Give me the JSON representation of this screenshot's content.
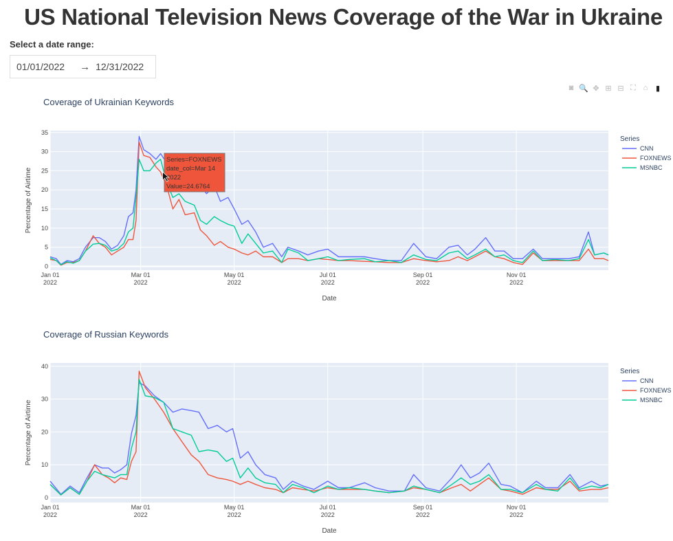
{
  "page": {
    "title": "US National Television News Coverage of the War in Ukraine"
  },
  "date_range": {
    "label": "Select a date range:",
    "start": "01/01/2022",
    "arrow": "→",
    "end": "12/31/2022"
  },
  "toolbar": [
    {
      "icon": "camera-icon",
      "glyph": "◙"
    },
    {
      "icon": "zoom-icon",
      "glyph": "🔍"
    },
    {
      "icon": "pan-icon",
      "glyph": "✥"
    },
    {
      "icon": "zoom-in-icon",
      "glyph": "⊞"
    },
    {
      "icon": "zoom-out-icon",
      "glyph": "⊟"
    },
    {
      "icon": "autoscale-icon",
      "glyph": "⛶"
    },
    {
      "icon": "home-icon",
      "glyph": "⌂"
    },
    {
      "icon": "plotly-logo-icon",
      "glyph": "▮"
    }
  ],
  "colors": {
    "CNN": "#636efa",
    "FOXNEWS": "#EF553B",
    "MSNBC": "#00cc96",
    "plot_bg": "#e5ecf6",
    "text": "#2a3f5f"
  },
  "chart_data": [
    {
      "type": "line",
      "title": "Coverage of Ukrainian Keywords",
      "xlabel": "Date",
      "ylabel": "Percentage of Airtime",
      "ylim": [
        -1,
        35.5
      ],
      "yticks": [
        0,
        5,
        10,
        15,
        20,
        25,
        30,
        35
      ],
      "xticks": [
        {
          "date": "2022-01-01",
          "label": "Jan 01",
          "year": "2022"
        },
        {
          "date": "2022-03-01",
          "label": "Mar 01",
          "year": "2022"
        },
        {
          "date": "2022-05-01",
          "label": "May 01",
          "year": "2022"
        },
        {
          "date": "2022-07-01",
          "label": "Jul 01",
          "year": "2022"
        },
        {
          "date": "2022-09-01",
          "label": "Sep 01",
          "year": "2022"
        },
        {
          "date": "2022-11-01",
          "label": "Nov 01",
          "year": "2022"
        }
      ],
      "xlim": [
        "2022-01-01",
        "2022-12-31"
      ],
      "grid": true,
      "legend": {
        "title": "Series",
        "placement": "right"
      },
      "hover": {
        "lines": [
          "Series=FOXNEWS",
          "date_col=Mar 14",
          "2022",
          "Value=24.6764"
        ],
        "series": "FOXNEWS",
        "date": "2022-03-14",
        "value": 24.6764
      },
      "x": [
        "2022-01-01",
        "2022-01-05",
        "2022-01-08",
        "2022-01-12",
        "2022-01-16",
        "2022-01-20",
        "2022-01-24",
        "2022-01-29",
        "2022-02-02",
        "2022-02-06",
        "2022-02-10",
        "2022-02-14",
        "2022-02-18",
        "2022-02-21",
        "2022-02-24",
        "2022-02-26",
        "2022-02-28",
        "2022-03-03",
        "2022-03-07",
        "2022-03-11",
        "2022-03-14",
        "2022-03-18",
        "2022-03-22",
        "2022-03-26",
        "2022-03-30",
        "2022-04-05",
        "2022-04-09",
        "2022-04-13",
        "2022-04-18",
        "2022-04-22",
        "2022-04-27",
        "2022-05-01",
        "2022-05-06",
        "2022-05-10",
        "2022-05-15",
        "2022-05-20",
        "2022-05-26",
        "2022-06-01",
        "2022-06-05",
        "2022-06-12",
        "2022-06-18",
        "2022-06-25",
        "2022-07-01",
        "2022-07-08",
        "2022-07-15",
        "2022-07-25",
        "2022-08-01",
        "2022-08-10",
        "2022-08-18",
        "2022-08-26",
        "2022-09-03",
        "2022-09-10",
        "2022-09-18",
        "2022-09-24",
        "2022-09-30",
        "2022-10-05",
        "2022-10-12",
        "2022-10-18",
        "2022-10-24",
        "2022-10-30",
        "2022-11-05",
        "2022-11-12",
        "2022-11-18",
        "2022-11-26",
        "2022-12-05",
        "2022-12-12",
        "2022-12-18",
        "2022-12-22",
        "2022-12-28",
        "2022-12-31"
      ],
      "series": [
        {
          "name": "CNN",
          "values": [
            2.5,
            2,
            0.5,
            1.5,
            1.2,
            2,
            5,
            7.5,
            7.5,
            6.5,
            4.5,
            5.5,
            8,
            13,
            14,
            20,
            34,
            30.5,
            29.5,
            28,
            29.5,
            27,
            25,
            23,
            22,
            21,
            21,
            19,
            21,
            17,
            18,
            15,
            11,
            12,
            9,
            5,
            6,
            2.5,
            5,
            4,
            3,
            4,
            4.5,
            2.5,
            2.5,
            2.5,
            2,
            1.5,
            1.5,
            6,
            2.5,
            2,
            5,
            5.5,
            3,
            4.5,
            7.5,
            4,
            4,
            2,
            2,
            4.5,
            2,
            2,
            2,
            2.5,
            9,
            3,
            3.5,
            3
          ]
        },
        {
          "name": "FOXNEWS",
          "values": [
            1.8,
            1.5,
            0.3,
            1,
            1,
            1.5,
            4,
            8,
            6,
            5,
            3,
            4,
            5,
            7,
            7,
            12,
            32.5,
            29,
            28.5,
            26,
            24.6764,
            21,
            15,
            17.5,
            13.5,
            14,
            9.5,
            8,
            5.5,
            6.5,
            5,
            4.5,
            3.5,
            3,
            4,
            2.5,
            2.5,
            1,
            2,
            2,
            1.5,
            2,
            1.8,
            1.5,
            1.5,
            1.3,
            1.2,
            1,
            1,
            2,
            1.5,
            1.2,
            1.5,
            2.5,
            1.5,
            2.5,
            4,
            2.5,
            2,
            1,
            0.5,
            3.5,
            1.5,
            1.5,
            1.5,
            1.5,
            4.5,
            2,
            2,
            1.5
          ]
        },
        {
          "name": "MSNBC",
          "values": [
            2.2,
            1.5,
            0.4,
            1.2,
            0.8,
            1.5,
            4,
            5.8,
            6,
            5.5,
            4,
            4.5,
            6,
            9,
            10,
            18,
            28,
            25,
            25,
            27,
            28,
            22,
            18,
            19,
            17,
            16,
            12,
            11,
            13,
            12,
            11,
            10.5,
            6,
            8.5,
            6,
            3.5,
            4,
            1,
            4.5,
            3.5,
            1.5,
            2,
            2.5,
            1.5,
            1.8,
            2,
            1.2,
            1.5,
            1,
            3,
            1.8,
            1.5,
            3.5,
            4,
            2,
            3,
            4.5,
            2.5,
            3,
            1.5,
            1,
            4,
            1.5,
            1.8,
            1.5,
            2,
            7,
            3,
            3.5,
            3
          ]
        }
      ]
    },
    {
      "type": "line",
      "title": "Coverage of Russian Keywords",
      "xlabel": "Date",
      "ylabel": "Percentage of Airtime",
      "ylim": [
        -1.5,
        41
      ],
      "yticks": [
        0,
        10,
        20,
        30,
        40
      ],
      "xticks": [
        {
          "date": "2022-01-01",
          "label": "Jan 01",
          "year": "2022"
        },
        {
          "date": "2022-03-01",
          "label": "Mar 01",
          "year": "2022"
        },
        {
          "date": "2022-05-01",
          "label": "May 01",
          "year": "2022"
        },
        {
          "date": "2022-07-01",
          "label": "Jul 01",
          "year": "2022"
        },
        {
          "date": "2022-09-01",
          "label": "Sep 01",
          "year": "2022"
        },
        {
          "date": "2022-11-01",
          "label": "Nov 01",
          "year": "2022"
        }
      ],
      "xlim": [
        "2022-01-01",
        "2022-12-31"
      ],
      "grid": true,
      "legend": {
        "title": "Series",
        "placement": "right"
      },
      "x": [
        "2022-01-01",
        "2022-01-08",
        "2022-01-14",
        "2022-01-20",
        "2022-01-25",
        "2022-01-30",
        "2022-02-04",
        "2022-02-08",
        "2022-02-12",
        "2022-02-16",
        "2022-02-20",
        "2022-02-23",
        "2022-02-26",
        "2022-02-28",
        "2022-03-04",
        "2022-03-10",
        "2022-03-16",
        "2022-03-22",
        "2022-03-28",
        "2022-04-03",
        "2022-04-08",
        "2022-04-14",
        "2022-04-20",
        "2022-04-26",
        "2022-04-30",
        "2022-05-05",
        "2022-05-10",
        "2022-05-15",
        "2022-05-21",
        "2022-05-28",
        "2022-06-02",
        "2022-06-08",
        "2022-06-15",
        "2022-06-22",
        "2022-07-01",
        "2022-07-08",
        "2022-07-15",
        "2022-07-25",
        "2022-08-01",
        "2022-08-10",
        "2022-08-20",
        "2022-08-26",
        "2022-09-03",
        "2022-09-12",
        "2022-09-20",
        "2022-09-26",
        "2022-10-02",
        "2022-10-08",
        "2022-10-14",
        "2022-10-22",
        "2022-10-28",
        "2022-11-05",
        "2022-11-14",
        "2022-11-20",
        "2022-11-28",
        "2022-12-06",
        "2022-12-12",
        "2022-12-20",
        "2022-12-26",
        "2022-12-31"
      ],
      "series": [
        {
          "name": "CNN",
          "values": [
            5,
            1,
            3.5,
            1.5,
            6,
            10,
            9,
            9,
            7.5,
            8.5,
            10,
            19.5,
            25,
            35,
            34,
            31,
            29,
            26,
            27,
            26.5,
            26,
            21,
            22,
            20,
            21,
            12,
            14,
            10,
            7,
            6,
            2.5,
            5,
            3.5,
            2.5,
            5,
            3,
            3,
            4.5,
            3,
            2,
            2,
            7,
            3,
            2,
            6,
            10,
            6,
            7.5,
            10.5,
            4,
            3.5,
            1.5,
            5,
            3,
            3,
            7,
            3,
            5,
            3.5,
            4
          ]
        },
        {
          "name": "FOXNEWS",
          "values": [
            4,
            0.8,
            3,
            1,
            5,
            10,
            7,
            6,
            4.5,
            6,
            5.5,
            11,
            14,
            38.5,
            33.5,
            30,
            26,
            21,
            17,
            13,
            11,
            7,
            6,
            5.5,
            5,
            4,
            5,
            4,
            3,
            2.5,
            1.5,
            3,
            2.5,
            2,
            3,
            2.5,
            2.5,
            2.5,
            2,
            1.5,
            2,
            3,
            2.5,
            1.5,
            3,
            4,
            2,
            4,
            6,
            2.5,
            2,
            1,
            3,
            2.5,
            2.5,
            5,
            2,
            2.5,
            2.5,
            3
          ]
        },
        {
          "name": "MSNBC",
          "values": [
            4,
            0.8,
            3,
            1,
            5,
            8,
            7,
            6.5,
            6,
            7,
            7,
            15,
            20,
            36,
            31,
            30.5,
            29,
            21,
            20,
            19,
            14,
            14.5,
            14,
            11,
            12,
            6,
            9,
            6,
            4.5,
            4,
            1.5,
            4,
            3,
            1.5,
            3.5,
            2.5,
            3,
            2.5,
            2,
            1.5,
            2,
            3.5,
            2.5,
            1.5,
            4,
            6,
            4,
            5,
            7,
            2.5,
            2.5,
            1.5,
            4,
            2.5,
            2,
            6,
            2.5,
            3.5,
            3,
            4
          ]
        }
      ]
    }
  ]
}
